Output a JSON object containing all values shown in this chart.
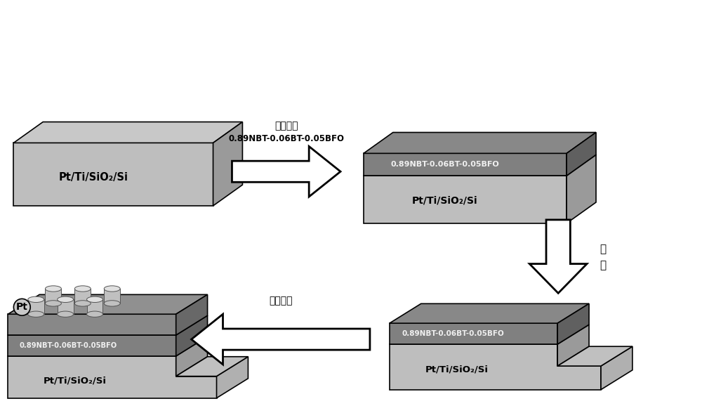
{
  "bg_color": "#ffffff",
  "arrow_fill": "#ffffff",
  "arrow_edge": "#000000",
  "text_color": "#000000",
  "label_step1_cn": "沉积薄膜",
  "label_step1_en": "0.89NBT-0.06BT-0.05BFO",
  "label_step2_cn": "刻蚀",
  "label_step3_cn": "沉积电极",
  "label_substrate": "Pt/Ti/SiO₂/Si",
  "label_film": "0.89NBT-0.06BT-0.05BFO",
  "label_pt": "Pt",
  "sub_top": "#c8c8c8",
  "sub_front": "#bebebe",
  "sub_right": "#9a9a9a",
  "film_top": "#888888",
  "film_front": "#808080",
  "film_right": "#606060",
  "top_layer_top": "#909090",
  "top_layer_front": "#888888",
  "top_layer_right": "#686868",
  "cyl_body": "#c0c0c0",
  "cyl_top": "#e0e0e0",
  "cyl_edge": "#555555"
}
